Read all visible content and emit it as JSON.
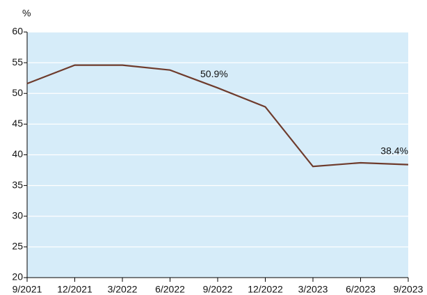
{
  "chart_data": {
    "type": "line",
    "y_unit_label": "%",
    "categories": [
      "9/2021",
      "12/2021",
      "3/2022",
      "6/2022",
      "9/2022",
      "12/2022",
      "3/2023",
      "6/2023",
      "9/2023"
    ],
    "values": [
      51.6,
      54.6,
      54.6,
      53.8,
      50.9,
      47.8,
      38.1,
      38.7,
      38.4
    ],
    "value_labels": [
      null,
      null,
      null,
      null,
      "50.9%",
      null,
      null,
      null,
      "38.4%"
    ],
    "color": "#6e3b2c",
    "ylim": [
      20,
      60
    ],
    "yticks": [
      20,
      25,
      30,
      35,
      40,
      45,
      50,
      55,
      60
    ],
    "grid": true,
    "background": "#d6ecf9"
  }
}
